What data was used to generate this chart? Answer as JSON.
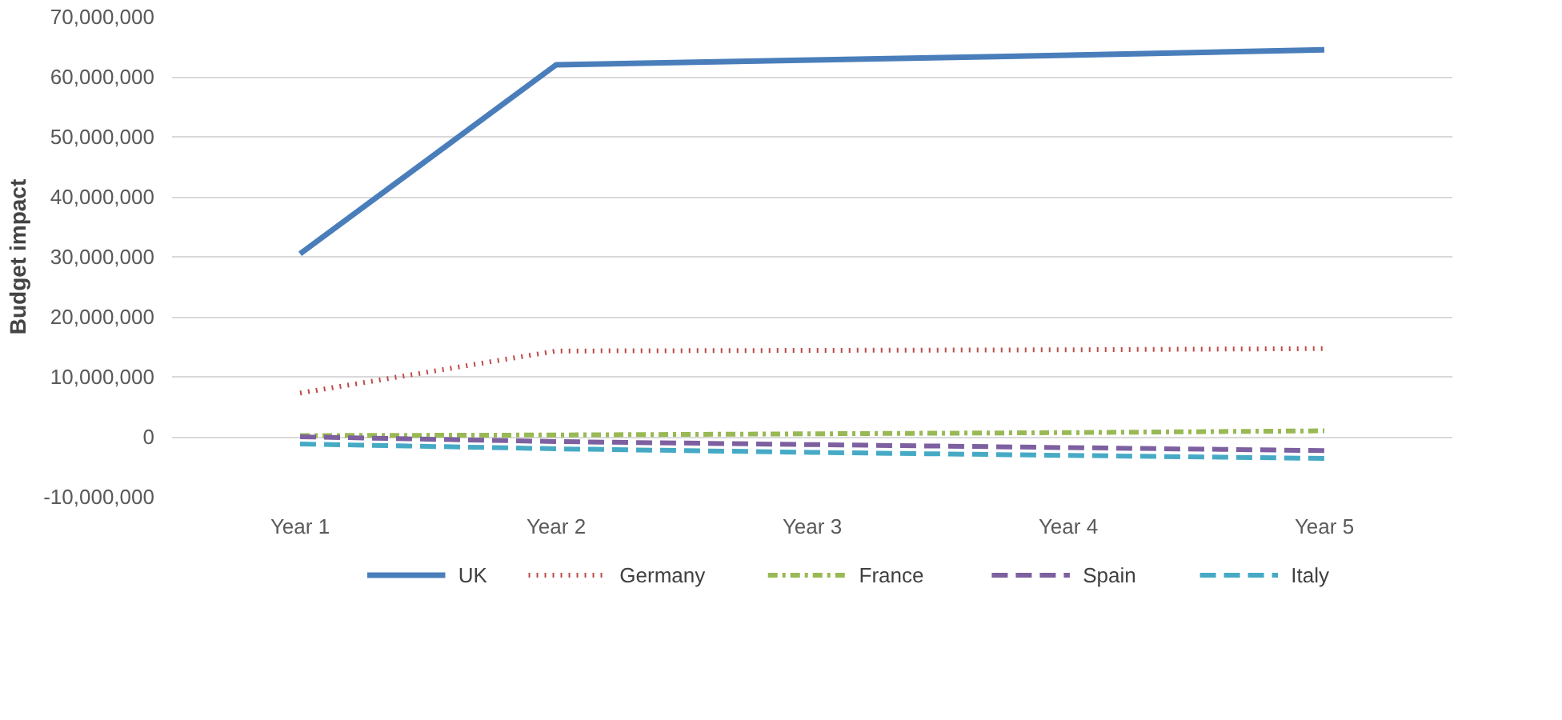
{
  "chart_data": {
    "type": "line",
    "ylabel": "Budget impact",
    "categories": [
      "Year 1",
      "Year 2",
      "Year 3",
      "Year 4",
      "Year 5"
    ],
    "series": [
      {
        "name": "UK",
        "color": "#4a7ebb",
        "line_style": "solid",
        "values": [
          30500000,
          62000000,
          62800000,
          63600000,
          64500000
        ]
      },
      {
        "name": "Germany",
        "color": "#be4b48",
        "line_style": "dotted",
        "values": [
          7300000,
          14300000,
          14400000,
          14500000,
          14700000
        ]
      },
      {
        "name": "France",
        "color": "#98b954",
        "line_style": "dashdot",
        "values": [
          200000,
          300000,
          500000,
          700000,
          1000000
        ]
      },
      {
        "name": "Spain",
        "color": "#7d60a0",
        "line_style": "dashed",
        "values": [
          0,
          -800000,
          -1300000,
          -1800000,
          -2300000
        ]
      },
      {
        "name": "Italy",
        "color": "#46aac5",
        "line_style": "dashed",
        "values": [
          -1200000,
          -2000000,
          -2600000,
          -3100000,
          -3600000
        ]
      }
    ],
    "ylim": [
      -10000000,
      70000000
    ],
    "yticks": [
      {
        "value": -10000000,
        "label": "-10,000,000"
      },
      {
        "value": 0,
        "label": "0"
      },
      {
        "value": 10000000,
        "label": "10,000,000"
      },
      {
        "value": 20000000,
        "label": "20,000,000"
      },
      {
        "value": 30000000,
        "label": "30,000,000"
      },
      {
        "value": 40000000,
        "label": "40,000,000"
      },
      {
        "value": 50000000,
        "label": "50,000,000"
      },
      {
        "value": 60000000,
        "label": "60,000,000"
      },
      {
        "value": 70000000,
        "label": "70,000,000"
      }
    ],
    "grid": "y",
    "legend": "bottom",
    "marker": "none"
  }
}
